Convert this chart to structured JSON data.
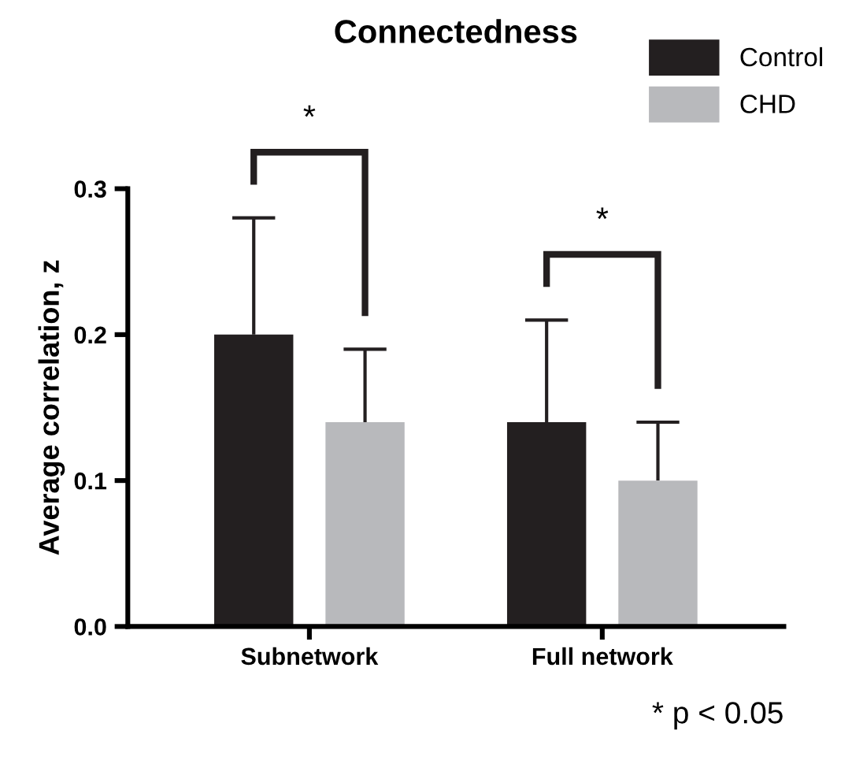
{
  "chart_data": {
    "type": "bar",
    "title": "Connectedness",
    "ylabel": "Average correlation, z",
    "categories": [
      "Subnetwork",
      "Full network"
    ],
    "series": [
      {
        "name": "Control",
        "color": "#231f20",
        "values": [
          0.2,
          0.14
        ],
        "errors": [
          [
            0.2,
            0.28
          ],
          [
            0.14,
            0.21
          ]
        ]
      },
      {
        "name": "CHD",
        "color": "#b8b9bc",
        "values": [
          0.14,
          0.1
        ],
        "errors": [
          [
            0.14,
            0.19
          ],
          [
            0.1,
            0.14
          ]
        ]
      }
    ],
    "ylim": [
      0,
      0.3
    ],
    "yticks": [
      {
        "value": 0,
        "label": "0.0"
      },
      {
        "value": 0.1,
        "label": "0.1"
      },
      {
        "value": 0.2,
        "label": "0.2"
      },
      {
        "value": 0.3,
        "label": "0.3"
      }
    ],
    "grid": false,
    "legend": "top right",
    "annotations": [
      "*",
      "*",
      "* p < 0.05"
    ]
  }
}
